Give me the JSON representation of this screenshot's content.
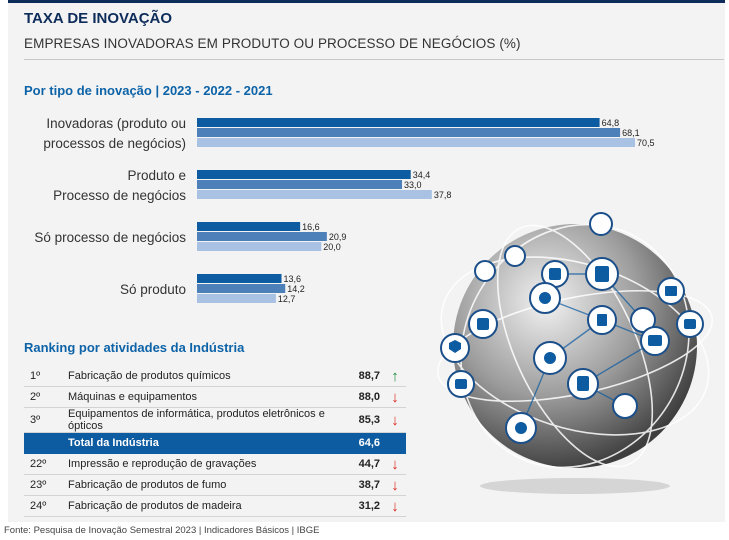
{
  "header": {
    "title": "TAXA DE INOVAÇÃO",
    "subtitle": "EMPRESAS INOVADORAS EM PRODUTO OU PROCESSO DE NEGÓCIOS (%)"
  },
  "chart_section_title": "Por tipo de inovação | 2023 - 2022 - 2021",
  "chart_data": {
    "type": "bar",
    "orientation": "horizontal",
    "categories": [
      [
        "Inovadoras (produto ou",
        "processos de negócios)"
      ],
      [
        "Produto e",
        "Processo de negócios"
      ],
      [
        "Só processo de negócios"
      ],
      [
        "Só produto"
      ]
    ],
    "series": [
      {
        "values": [
          64.8,
          34.4,
          16.6,
          13.6
        ],
        "labels": [
          "64,8",
          "34,4",
          "16,6",
          "13,6"
        ],
        "color": "#0d5ba0"
      },
      {
        "values": [
          68.1,
          33.0,
          20.9,
          14.2
        ],
        "labels": [
          "68,1",
          "33,0",
          "20,9",
          "14,2"
        ],
        "color": "#4d7fb8"
      },
      {
        "values": [
          70.5,
          37.8,
          20.0,
          12.7
        ],
        "labels": [
          "70,5",
          "37,8",
          "20,0",
          "12,7"
        ],
        "color": "#a9c2e3"
      }
    ],
    "xlim": [
      0,
      75
    ],
    "grid": false,
    "legend": "none"
  },
  "ranking": {
    "title": "Ranking por atividades da Indústria",
    "rows": [
      {
        "pos": "1º",
        "label": "Fabricação de produtos químicos",
        "value": "88,7",
        "arrow": "↑",
        "arrow_color": "#1a8a3a"
      },
      {
        "pos": "2º",
        "label": "Máquinas e equipamentos",
        "value": "88,0",
        "arrow": "↓",
        "arrow_color": "#d9261c"
      },
      {
        "pos": "3º",
        "label": "Equipamentos de informática, produtos eletrônicos e ópticos",
        "value": "85,3",
        "arrow": "↓",
        "arrow_color": "#d9261c"
      },
      {
        "pos": "",
        "label": "Total da Indústria",
        "value": "64,6",
        "arrow": "",
        "total": true
      },
      {
        "pos": "22º",
        "label": "Impressão e reprodução de gravações",
        "value": "44,7",
        "arrow": "↓",
        "arrow_color": "#d9261c"
      },
      {
        "pos": "23º",
        "label": "Fabricação de produtos de fumo",
        "value": "38,7",
        "arrow": "↓",
        "arrow_color": "#d9261c"
      },
      {
        "pos": "24º",
        "label": "Fabricação de produtos de madeira",
        "value": "31,2",
        "arrow": "↓",
        "arrow_color": "#d9261c"
      }
    ]
  },
  "footer": "Fonte: Pesquisa de Inovação Semestral 2023 | Indicadores Básicos | IBGE"
}
